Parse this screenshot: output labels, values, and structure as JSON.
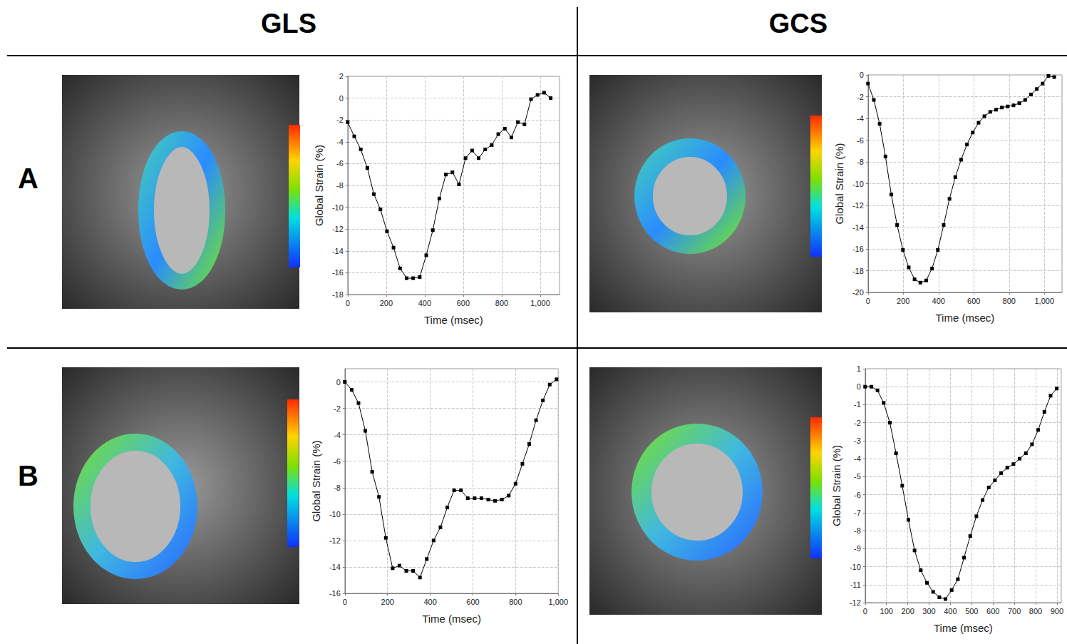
{
  "headers": [
    "GLS",
    "GCS"
  ],
  "row_labels": [
    "A",
    "B"
  ],
  "chart_data": [
    {
      "type": "line",
      "x_label": "Time (msec)",
      "y_label": "Global Strain (%)",
      "color": "#000000",
      "marker": "square",
      "grid": true,
      "x": [
        0,
        34,
        68,
        102,
        136,
        170,
        204,
        238,
        272,
        306,
        340,
        374,
        408,
        442,
        476,
        510,
        544,
        578,
        612,
        646,
        680,
        714,
        748,
        782,
        816,
        850,
        884,
        918,
        952,
        986,
        1020,
        1054
      ],
      "values": [
        -2.2,
        -3.5,
        -4.7,
        -6.4,
        -8.8,
        -10.2,
        -12.2,
        -13.7,
        -15.6,
        -16.5,
        -16.5,
        -16.4,
        -14.4,
        -12.1,
        -9.2,
        -7.0,
        -6.8,
        -7.9,
        -5.5,
        -4.8,
        -5.5,
        -4.7,
        -4.3,
        -3.3,
        -2.8,
        -3.6,
        -2.2,
        -2.4,
        -0.1,
        0.3,
        0.5,
        0.0
      ],
      "xlim": [
        0,
        1100
      ],
      "xticks": [
        0,
        200,
        400,
        600,
        800,
        {
          "value": 1000,
          "label": "1,000"
        }
      ],
      "ylim": [
        -18,
        2
      ],
      "yticks": [
        -18,
        -16,
        -14,
        -12,
        -10,
        -8,
        -6,
        -4,
        -2,
        0,
        2
      ]
    },
    {
      "type": "line",
      "x_label": "Time (msec)",
      "y_label": "Global Strain (%)",
      "color": "#000000",
      "marker": "square",
      "grid": true,
      "x": [
        0,
        33,
        66,
        99,
        132,
        165,
        198,
        231,
        264,
        297,
        330,
        363,
        396,
        429,
        462,
        495,
        528,
        561,
        594,
        627,
        660,
        693,
        726,
        759,
        792,
        825,
        858,
        891,
        924,
        957,
        990,
        1023,
        1056
      ],
      "values": [
        -0.8,
        -2.3,
        -4.5,
        -7.5,
        -11.0,
        -13.8,
        -16.1,
        -17.7,
        -18.8,
        -19.1,
        -18.9,
        -17.8,
        -16.1,
        -13.8,
        -11.4,
        -9.4,
        -7.8,
        -6.4,
        -5.3,
        -4.4,
        -3.8,
        -3.4,
        -3.2,
        -3.0,
        -2.9,
        -2.8,
        -2.6,
        -2.3,
        -1.8,
        -1.3,
        -0.8,
        -0.1,
        -0.2
      ],
      "xlim": [
        0,
        1100
      ],
      "xticks": [
        0,
        200,
        400,
        600,
        800,
        {
          "value": 1000,
          "label": "1,000"
        }
      ],
      "ylim": [
        -20,
        0
      ],
      "yticks": [
        -20,
        -18,
        -16,
        -14,
        -12,
        -10,
        -8,
        -6,
        -4,
        -2,
        0
      ]
    },
    {
      "type": "line",
      "x_label": "Time (msec)",
      "y_label": "Global Strain (%)",
      "color": "#000000",
      "marker": "square",
      "grid": true,
      "x": [
        0,
        32,
        64,
        96,
        128,
        160,
        192,
        224,
        256,
        288,
        320,
        352,
        384,
        416,
        448,
        480,
        512,
        544,
        576,
        608,
        640,
        672,
        704,
        736,
        768,
        800,
        832,
        864,
        896,
        928,
        960,
        992
      ],
      "values": [
        0.0,
        -0.6,
        -1.6,
        -3.7,
        -6.8,
        -8.7,
        -11.8,
        -14.1,
        -13.9,
        -14.3,
        -14.3,
        -14.8,
        -13.4,
        -12.0,
        -11.0,
        -9.5,
        -8.2,
        -8.2,
        -8.8,
        -8.8,
        -8.8,
        -8.9,
        -9.0,
        -8.9,
        -8.6,
        -7.7,
        -6.2,
        -4.7,
        -2.9,
        -1.4,
        -0.2,
        0.2
      ],
      "xlim": [
        0,
        1000
      ],
      "xticks": [
        0,
        200,
        400,
        600,
        800,
        {
          "value": 1000,
          "label": "1,000"
        }
      ],
      "ylim": [
        -16,
        1
      ],
      "yticks": [
        -16,
        -14,
        -12,
        -10,
        -8,
        -6,
        -4,
        -2,
        0
      ]
    },
    {
      "type": "line",
      "x_label": "Time (msec)",
      "y_label": "Global Strain (%)",
      "color": "#000000",
      "marker": "square",
      "grid": true,
      "x": [
        0,
        29,
        58,
        87,
        116,
        145,
        174,
        203,
        232,
        261,
        290,
        319,
        348,
        377,
        406,
        435,
        464,
        493,
        522,
        551,
        580,
        609,
        638,
        667,
        696,
        725,
        754,
        783,
        812,
        841,
        870,
        899
      ],
      "values": [
        0.0,
        0.0,
        -0.2,
        -0.9,
        -2.0,
        -3.7,
        -5.5,
        -7.4,
        -9.1,
        -10.2,
        -10.9,
        -11.4,
        -11.7,
        -11.8,
        -11.3,
        -10.7,
        -9.5,
        -8.3,
        -7.2,
        -6.3,
        -5.6,
        -5.2,
        -4.8,
        -4.5,
        -4.3,
        -4.0,
        -3.7,
        -3.2,
        -2.4,
        -1.4,
        -0.5,
        -0.1
      ],
      "xlim": [
        0,
        920
      ],
      "xticks": [
        0,
        100,
        200,
        300,
        400,
        500,
        600,
        700,
        800,
        900
      ],
      "ylim": [
        -12,
        1
      ],
      "yticks": [
        -12,
        -11,
        -10,
        -9,
        -8,
        -7,
        -6,
        -5,
        -4,
        -3,
        -2,
        -1,
        0,
        1
      ]
    }
  ]
}
